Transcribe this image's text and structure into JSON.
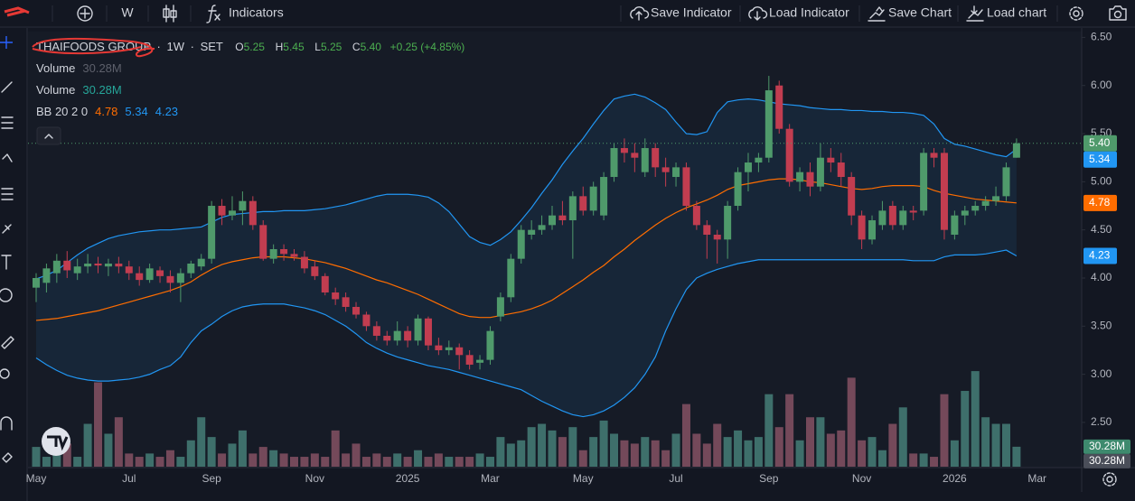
{
  "toolbar": {
    "interval": "W",
    "indicators": "Indicators",
    "save_indicator": "Save Indicator",
    "load_indicator": "Load Indicator",
    "save_chart": "Save Chart",
    "load_chart": "Load chart"
  },
  "legend": {
    "symbol": "THAIFOODS GROUP",
    "separator": "·",
    "interval": "1W",
    "exchange": "SET",
    "open_key": "O",
    "open": "5.25",
    "high_key": "H",
    "high": "5.45",
    "low_key": "L",
    "low": "5.25",
    "close_key": "C",
    "close": "5.40",
    "change": "+0.25 (+4.85%)",
    "volume_name": "Volume",
    "volume": "30.28M",
    "bb_name": "BB 20 2 0",
    "bb_basis": "4.78",
    "bb_upper": "5.34",
    "bb_lower": "4.23"
  },
  "chart_data": {
    "type": "candlestick",
    "categories": [
      "May",
      null,
      null,
      null,
      null,
      null,
      null,
      null,
      null,
      "Jul",
      null,
      null,
      null,
      null,
      null,
      null,
      null,
      "Sep",
      null,
      null,
      null,
      null,
      null,
      null,
      null,
      null,
      null,
      "Nov",
      null,
      null,
      null,
      null,
      null,
      null,
      null,
      null,
      "2025",
      null,
      null,
      null,
      null,
      null,
      null,
      null,
      "Mar",
      null,
      null,
      null,
      null,
      null,
      null,
      null,
      null,
      "May",
      null,
      null,
      null,
      null,
      null,
      null,
      null,
      null,
      "Jul",
      null,
      null,
      null,
      null,
      null,
      null,
      null,
      null,
      "Sep",
      null,
      null,
      null,
      null,
      null,
      null,
      null,
      null,
      "Nov",
      null,
      null,
      null,
      null,
      null,
      null,
      null,
      null,
      "2026",
      null,
      null,
      null,
      null,
      null,
      null,
      null,
      "Mar"
    ],
    "open": [
      3.9,
      3.95,
      4.05,
      4.18,
      4.05,
      4.12,
      4.15,
      4.12,
      4.15,
      4.12,
      4.05,
      3.98,
      4.08,
      4.02,
      3.95,
      4.05,
      4.12,
      4.2,
      4.75,
      4.65,
      4.7,
      4.8,
      4.55,
      4.2,
      4.3,
      4.25,
      4.22,
      4.12,
      4.02,
      3.85,
      3.8,
      3.7,
      3.62,
      3.5,
      3.4,
      3.35,
      3.45,
      3.35,
      3.58,
      3.3,
      3.25,
      3.28,
      3.2,
      3.12,
      3.15,
      3.6,
      3.8,
      4.2,
      4.45,
      4.5,
      4.55,
      4.65,
      4.6,
      4.85,
      4.7,
      4.65,
      5.05,
      5.35,
      5.3,
      5.1,
      5.35,
      5.15,
      5.05,
      5.15,
      4.75,
      4.55,
      4.45,
      4.4,
      4.75,
      5.1,
      5.2,
      5.25,
      6.0,
      5.55,
      5.0,
      5.1,
      4.95,
      5.25,
      5.2,
      5.05,
      4.65,
      4.4,
      4.55,
      4.75,
      4.55,
      4.7,
      4.7,
      5.3,
      5.3,
      4.45,
      4.65,
      4.7,
      4.75,
      4.8,
      4.85,
      5.25,
      null,
      null
    ],
    "high": [
      4.05,
      4.15,
      4.25,
      4.28,
      4.2,
      4.25,
      4.22,
      4.2,
      4.22,
      4.18,
      4.12,
      4.15,
      4.12,
      4.08,
      4.1,
      4.18,
      4.25,
      4.8,
      4.82,
      4.85,
      4.9,
      4.85,
      4.6,
      4.35,
      4.35,
      4.3,
      4.28,
      4.18,
      4.05,
      3.9,
      3.85,
      3.75,
      3.65,
      3.55,
      3.45,
      3.55,
      3.5,
      3.62,
      3.6,
      3.38,
      3.35,
      3.32,
      3.25,
      3.2,
      3.5,
      3.85,
      4.25,
      4.55,
      4.6,
      4.65,
      4.75,
      4.8,
      4.9,
      4.95,
      5.0,
      5.1,
      5.4,
      5.45,
      5.4,
      5.45,
      5.4,
      5.25,
      5.2,
      5.2,
      4.8,
      4.6,
      4.5,
      4.8,
      5.15,
      5.3,
      5.3,
      6.1,
      6.05,
      5.6,
      5.15,
      5.2,
      5.4,
      5.35,
      5.3,
      5.1,
      4.7,
      4.65,
      4.8,
      4.8,
      4.75,
      4.75,
      5.35,
      5.35,
      5.35,
      4.7,
      4.75,
      4.8,
      4.85,
      4.95,
      5.2,
      5.45,
      null,
      null
    ],
    "low": [
      3.75,
      3.85,
      3.95,
      4.0,
      3.98,
      4.05,
      4.05,
      4.02,
      4.05,
      3.98,
      3.92,
      3.95,
      3.95,
      3.85,
      3.75,
      4.0,
      4.08,
      4.15,
      4.55,
      4.6,
      4.55,
      4.5,
      4.18,
      4.15,
      4.18,
      4.18,
      4.05,
      3.98,
      3.82,
      3.72,
      3.65,
      3.58,
      3.45,
      3.35,
      3.3,
      3.3,
      3.28,
      3.3,
      3.25,
      3.2,
      3.2,
      3.05,
      3.05,
      3.05,
      3.1,
      3.55,
      3.75,
      4.15,
      4.4,
      4.45,
      4.5,
      4.55,
      4.2,
      4.65,
      4.65,
      4.6,
      5.0,
      5.2,
      5.1,
      5.05,
      5.05,
      4.95,
      4.95,
      4.7,
      4.5,
      4.2,
      4.15,
      4.2,
      4.7,
      4.9,
      5.1,
      5.2,
      5.5,
      4.95,
      4.9,
      4.85,
      4.9,
      5.1,
      4.95,
      4.55,
      4.3,
      4.35,
      4.5,
      4.5,
      4.5,
      4.6,
      4.65,
      5.15,
      4.4,
      4.4,
      4.55,
      4.65,
      4.7,
      4.75,
      4.8,
      5.25,
      null,
      null
    ],
    "close": [
      4.0,
      4.1,
      4.18,
      4.08,
      4.12,
      4.15,
      4.13,
      4.15,
      4.12,
      4.05,
      3.98,
      4.1,
      4.02,
      3.95,
      4.05,
      4.15,
      4.2,
      4.75,
      4.65,
      4.7,
      4.8,
      4.55,
      4.2,
      4.3,
      4.25,
      4.22,
      4.1,
      4.02,
      3.85,
      3.78,
      3.7,
      3.62,
      3.5,
      3.4,
      3.35,
      3.45,
      3.35,
      3.58,
      3.3,
      3.25,
      3.28,
      3.2,
      3.1,
      3.15,
      3.45,
      3.8,
      4.2,
      4.5,
      4.5,
      4.55,
      4.65,
      4.6,
      4.85,
      4.7,
      4.95,
      5.05,
      5.35,
      5.3,
      5.25,
      5.35,
      5.15,
      5.1,
      5.15,
      4.75,
      4.55,
      4.45,
      4.4,
      4.75,
      5.1,
      5.2,
      5.25,
      5.95,
      5.55,
      5.0,
      5.1,
      4.95,
      5.25,
      5.2,
      5.05,
      4.65,
      4.4,
      4.6,
      4.7,
      4.55,
      4.7,
      4.68,
      5.3,
      5.25,
      4.5,
      4.65,
      4.7,
      4.75,
      4.8,
      4.85,
      5.15,
      5.4,
      null,
      null
    ],
    "volume": [
      30,
      15,
      20,
      35,
      15,
      65,
      128,
      50,
      75,
      20,
      15,
      20,
      15,
      25,
      15,
      40,
      75,
      45,
      20,
      35,
      55,
      20,
      30,
      25,
      20,
      15,
      15,
      20,
      15,
      55,
      20,
      35,
      15,
      20,
      15,
      20,
      15,
      25,
      15,
      20,
      15,
      15,
      15,
      20,
      15,
      45,
      35,
      40,
      60,
      65,
      55,
      45,
      60,
      25,
      45,
      70,
      50,
      40,
      35,
      45,
      40,
      25,
      50,
      95,
      50,
      35,
      65,
      45,
      55,
      40,
      45,
      110,
      60,
      110,
      40,
      75,
      75,
      50,
      55,
      135,
      40,
      45,
      25,
      65,
      90,
      20,
      20,
      15,
      110,
      40,
      115,
      145,
      75,
      65,
      65,
      30.28,
      null,
      null
    ],
    "bands": {
      "upper": [
        3.99,
        4.03,
        4.08,
        4.16,
        4.24,
        4.31,
        4.36,
        4.41,
        4.44,
        4.46,
        4.48,
        4.49,
        4.5,
        4.5,
        4.51,
        4.52,
        4.53,
        4.58,
        4.63,
        4.66,
        4.67,
        4.68,
        4.69,
        4.69,
        4.7,
        4.7,
        4.7,
        4.71,
        4.72,
        4.74,
        4.76,
        4.79,
        4.82,
        4.85,
        4.87,
        4.87,
        4.87,
        4.86,
        4.84,
        4.78,
        4.69,
        4.56,
        4.43,
        4.37,
        4.34,
        4.4,
        4.48,
        4.6,
        4.73,
        4.88,
        5.02,
        5.18,
        5.32,
        5.45,
        5.6,
        5.74,
        5.86,
        5.89,
        5.91,
        5.88,
        5.82,
        5.75,
        5.62,
        5.5,
        5.49,
        5.52,
        5.72,
        5.83,
        5.85,
        5.86,
        5.85,
        5.83,
        5.81,
        5.8,
        5.79,
        5.77,
        5.76,
        5.75,
        5.75,
        5.74,
        5.74,
        5.73,
        5.73,
        5.72,
        5.72,
        5.71,
        5.69,
        5.6,
        5.45,
        5.39,
        5.37,
        5.34,
        5.31,
        5.28,
        5.26,
        5.34,
        null,
        null
      ],
      "basis": [
        3.56,
        3.57,
        3.58,
        3.6,
        3.62,
        3.64,
        3.66,
        3.69,
        3.72,
        3.75,
        3.78,
        3.81,
        3.84,
        3.87,
        3.91,
        3.96,
        4.03,
        4.09,
        4.14,
        4.17,
        4.19,
        4.21,
        4.22,
        4.22,
        4.22,
        4.21,
        4.2,
        4.18,
        4.16,
        4.13,
        4.1,
        4.06,
        4.02,
        3.98,
        3.95,
        3.91,
        3.87,
        3.83,
        3.78,
        3.73,
        3.68,
        3.63,
        3.6,
        3.59,
        3.59,
        3.61,
        3.63,
        3.65,
        3.68,
        3.72,
        3.77,
        3.84,
        3.91,
        3.98,
        4.06,
        4.13,
        4.22,
        4.3,
        4.39,
        4.47,
        4.55,
        4.62,
        4.68,
        4.73,
        4.77,
        4.81,
        4.86,
        4.92,
        4.96,
        4.98,
        5.0,
        5.02,
        5.03,
        5.03,
        5.02,
        5.0,
        4.99,
        4.97,
        4.95,
        4.93,
        4.92,
        4.93,
        4.95,
        4.96,
        4.96,
        4.96,
        4.95,
        4.91,
        4.88,
        4.86,
        4.84,
        4.82,
        4.81,
        4.8,
        4.79,
        4.78,
        null,
        null
      ],
      "lower": [
        3.17,
        3.1,
        3.04,
        2.99,
        2.96,
        2.94,
        2.93,
        2.93,
        2.94,
        2.95,
        2.97,
        3.0,
        3.05,
        3.09,
        3.18,
        3.33,
        3.45,
        3.52,
        3.6,
        3.66,
        3.7,
        3.72,
        3.73,
        3.73,
        3.73,
        3.71,
        3.69,
        3.66,
        3.62,
        3.56,
        3.5,
        3.42,
        3.33,
        3.27,
        3.22,
        3.18,
        3.15,
        3.12,
        3.09,
        3.07,
        3.05,
        3.02,
        2.99,
        2.96,
        2.93,
        2.9,
        2.87,
        2.84,
        2.78,
        2.72,
        2.67,
        2.62,
        2.58,
        2.56,
        2.58,
        2.62,
        2.68,
        2.76,
        2.86,
        3.0,
        3.18,
        3.45,
        3.68,
        3.88,
        4.0,
        4.05,
        4.09,
        4.12,
        4.15,
        4.17,
        4.19,
        4.19,
        4.19,
        4.19,
        4.19,
        4.19,
        4.19,
        4.19,
        4.19,
        4.19,
        4.19,
        4.19,
        4.19,
        4.19,
        4.19,
        4.18,
        4.18,
        4.18,
        4.22,
        4.24,
        4.24,
        4.24,
        4.25,
        4.27,
        4.29,
        4.23,
        null,
        null
      ]
    },
    "up_color": "#4f9a6b",
    "down_color": "#c23d50",
    "up_volume_color": "#3e6f6b",
    "down_volume_color": "#74495a",
    "band_color": "#2196f3",
    "basis_color": "#ff6d00",
    "band_fill": "rgba(33,150,243,0.09)",
    "ylim": [
      2.04,
      6.56
    ],
    "yticks": [
      {
        "value": 6.5,
        "label": "6.50"
      },
      {
        "value": 6,
        "label": "6.00"
      },
      {
        "value": 5.5,
        "label": "5.50"
      },
      {
        "value": 5,
        "label": "5.00"
      },
      {
        "value": 4.5,
        "label": "4.50"
      },
      {
        "value": 4,
        "label": "4.00"
      },
      {
        "value": 3.5,
        "label": "3.50"
      },
      {
        "value": 3,
        "label": "3.00"
      },
      {
        "value": 2.5,
        "label": "2.50"
      }
    ],
    "volume_lim": [
      0,
      660
    ],
    "price_tags": [
      {
        "value": 5.4,
        "label": "5.40",
        "color": "#4f9a6b"
      },
      {
        "value": 5.34,
        "label": "5.34",
        "color": "#2196f3"
      },
      {
        "value": 4.78,
        "label": "4.78",
        "color": "#ff6d00"
      },
      {
        "value": 4.23,
        "label": "4.23",
        "color": "#2196f3"
      }
    ],
    "volume_tags": [
      {
        "value": 30.28,
        "label": "30.28M",
        "color": "#3e8a6e"
      },
      {
        "value": 30.28,
        "label": "30.28M",
        "color": "#4a4e59"
      }
    ],
    "last_price_line": true
  }
}
